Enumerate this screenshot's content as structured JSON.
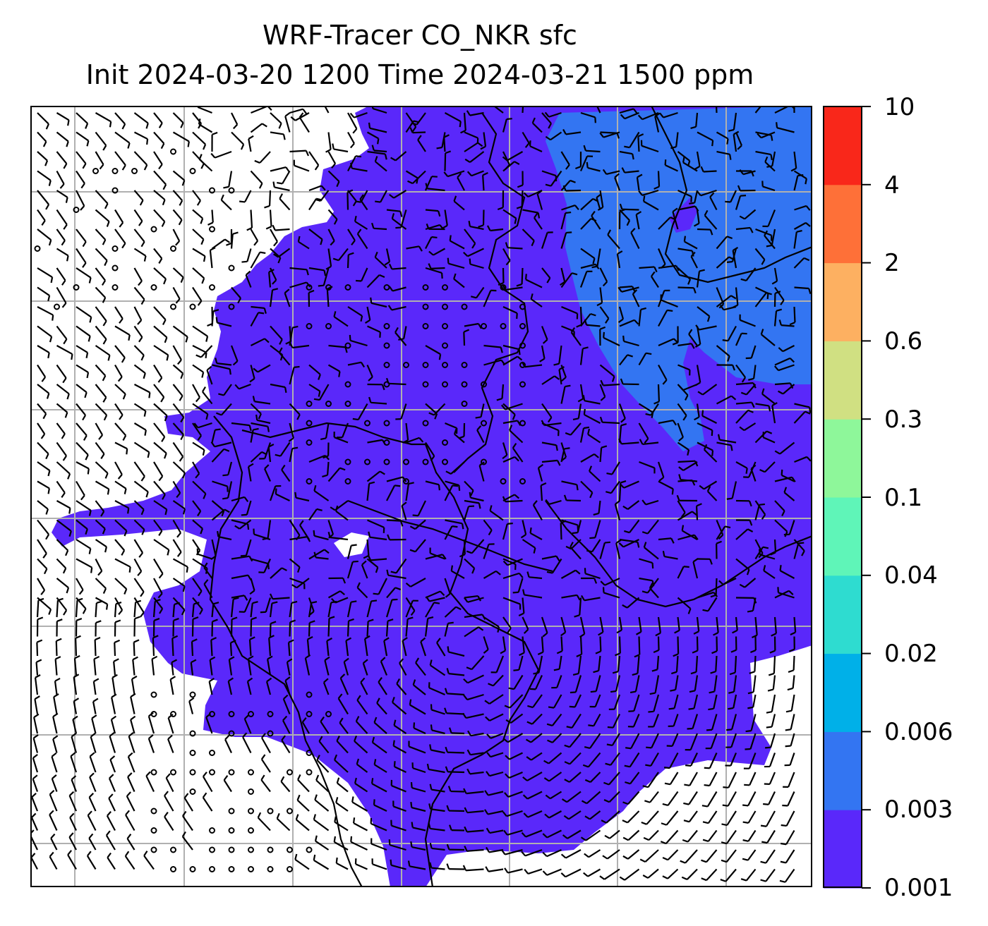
{
  "title": {
    "line1": "WRF-Tracer CO_NKR sfc",
    "line2": "Init 2024-03-20 1200 Time 2024-03-21 1500 ppm"
  },
  "colorbar": {
    "levels": [
      "0.001",
      "0.003",
      "0.006",
      "0.02",
      "0.04",
      "0.1",
      "0.3",
      "0.6",
      "2",
      "4",
      "10"
    ],
    "colors": [
      "#5a28fa",
      "#3375f2",
      "#00b0e8",
      "#2edcd0",
      "#5ff5b8",
      "#8ef79a",
      "#d0e082",
      "#fdb061",
      "#fe7038",
      "#f9271a"
    ]
  },
  "map": {
    "fill_low": "#5a28fa",
    "fill_mid": "#3375f2",
    "grid_color": "#b0b0b0",
    "barb_color": "#000000"
  }
}
